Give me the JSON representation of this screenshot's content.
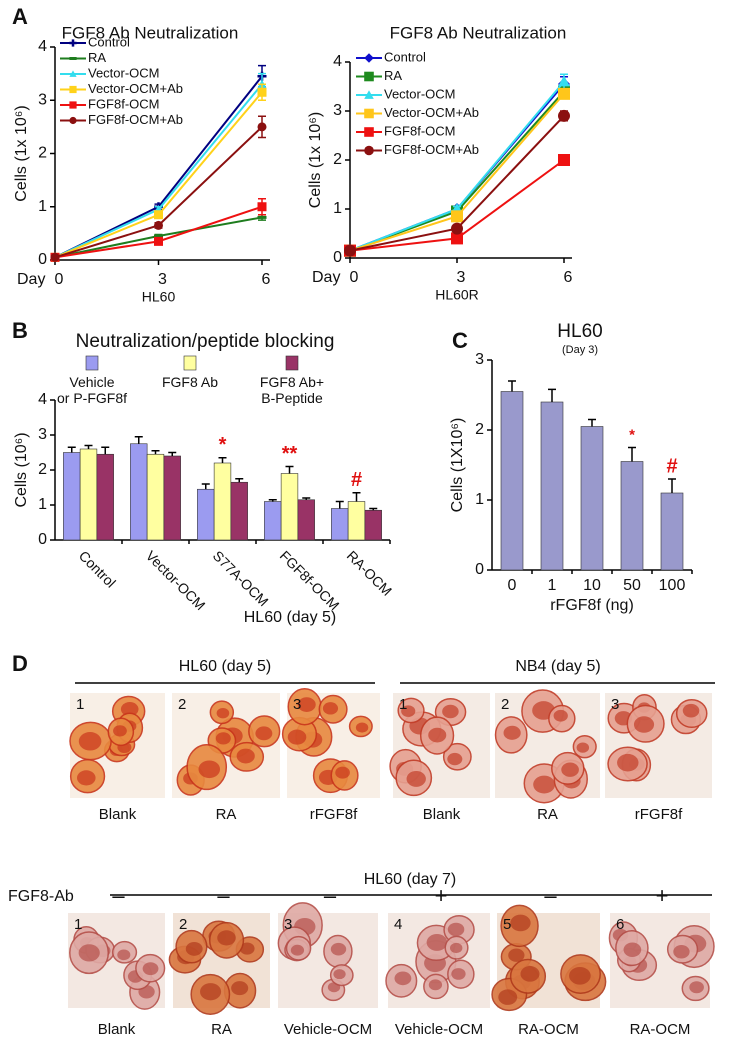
{
  "panel_labels": {
    "a": "A",
    "b": "B",
    "c": "C",
    "d": "D"
  },
  "chart_data": [
    {
      "type": "line",
      "title": "FGF8 Ab Neutralization",
      "xlabel": "HL60",
      "x_prefix": "Day",
      "ylabel": "Cells (1x 10⁶)",
      "x": [
        0,
        3,
        6
      ],
      "xlim": [
        0,
        6
      ],
      "xticks": [
        0,
        3,
        6
      ],
      "ylim": [
        0,
        4
      ],
      "yticks": [
        0,
        1,
        2,
        3,
        4
      ],
      "series": [
        {
          "name": "Control",
          "color": "#000080",
          "marker": "plus",
          "values": [
            0.05,
            1.0,
            3.45
          ],
          "errors": [
            0.02,
            0.05,
            0.2
          ]
        },
        {
          "name": "RA",
          "color": "#1e7d1e",
          "marker": "minus",
          "values": [
            0.05,
            0.45,
            0.8
          ],
          "errors": [
            0.02,
            0.03,
            0.05
          ]
        },
        {
          "name": "Vector-OCM",
          "color": "#33ddee",
          "marker": "triangle",
          "values": [
            0.05,
            0.95,
            3.3
          ],
          "errors": [
            0.02,
            0.05,
            0.2
          ]
        },
        {
          "name": "Vector-OCM+Ab",
          "color": "#ffd21a",
          "marker": "square",
          "values": [
            0.05,
            0.85,
            3.15
          ],
          "errors": [
            0.02,
            0.05,
            0.15
          ]
        },
        {
          "name": "FGF8f-OCM",
          "color": "#ee1111",
          "marker": "square",
          "values": [
            0.05,
            0.35,
            1.0
          ],
          "errors": [
            0.02,
            0.05,
            0.15
          ]
        },
        {
          "name": "FGF8f-OCM+Ab",
          "color": "#8b1010",
          "marker": "circle",
          "values": [
            0.05,
            0.65,
            2.5
          ],
          "errors": [
            0.02,
            0.05,
            0.2
          ]
        }
      ]
    },
    {
      "type": "line",
      "title": "FGF8 Ab Neutralization",
      "xlabel": "HL60R",
      "x_prefix": "Day",
      "ylabel": "Cells (1x 10⁶)",
      "x": [
        0,
        3,
        6
      ],
      "xlim": [
        0,
        6
      ],
      "xticks": [
        0,
        3,
        6
      ],
      "ylim": [
        0,
        4
      ],
      "yticks": [
        0,
        1,
        2,
        3,
        4
      ],
      "series": [
        {
          "name": "Control",
          "color": "#1010cc",
          "marker": "diamond",
          "values": [
            0.15,
            1.0,
            3.55
          ],
          "errors": [
            0.02,
            0.05,
            0.15
          ]
        },
        {
          "name": "RA",
          "color": "#1e8a1e",
          "marker": "square",
          "values": [
            0.15,
            0.95,
            3.4
          ],
          "errors": [
            0.02,
            0.05,
            0.1
          ]
        },
        {
          "name": "Vector-OCM",
          "color": "#33ddee",
          "marker": "triangle",
          "values": [
            0.15,
            1.0,
            3.6
          ],
          "errors": [
            0.02,
            0.05,
            0.15
          ]
        },
        {
          "name": "Vector-OCM+Ab",
          "color": "#ffc61a",
          "marker": "square",
          "values": [
            0.15,
            0.85,
            3.35
          ],
          "errors": [
            0.02,
            0.05,
            0.1
          ]
        },
        {
          "name": "FGF8f-OCM",
          "color": "#ee1111",
          "marker": "square",
          "values": [
            0.15,
            0.4,
            2.0
          ],
          "errors": [
            0.02,
            0.03,
            0.05
          ]
        },
        {
          "name": "FGF8f-OCM+Ab",
          "color": "#8b1010",
          "marker": "circle",
          "values": [
            0.15,
            0.6,
            2.9
          ],
          "errors": [
            0.02,
            0.05,
            0.1
          ]
        }
      ]
    },
    {
      "type": "bar",
      "title": "Neutralization/peptide blocking",
      "xlabel": "HL60 (day 5)",
      "ylabel": "Cells (10⁶)",
      "categories": [
        "Control",
        "Vector-OCM",
        "S77A-OCM",
        "FGF8f-OCM",
        "RA-OCM"
      ],
      "ylim": [
        0,
        4
      ],
      "yticks": [
        0,
        1,
        2,
        3,
        4
      ],
      "series": [
        {
          "name": "Vehicle\nor P-FGF8f",
          "color": "#9b9bf0",
          "values": [
            2.5,
            2.75,
            1.45,
            1.1,
            0.9
          ],
          "errors": [
            0.15,
            0.2,
            0.15,
            0.05,
            0.2
          ]
        },
        {
          "name": "FGF8 Ab",
          "color": "#ffffa0",
          "values": [
            2.6,
            2.45,
            2.2,
            1.9,
            1.1
          ],
          "errors": [
            0.1,
            0.1,
            0.15,
            0.2,
            0.25
          ]
        },
        {
          "name": "FGF8 Ab+\nB-Peptide",
          "color": "#993366",
          "values": [
            2.45,
            2.4,
            1.65,
            1.15,
            0.85
          ],
          "errors": [
            0.2,
            0.1,
            0.1,
            0.05,
            0.05
          ]
        }
      ],
      "annotation_color": "#e01010",
      "annotations": [
        {
          "text": "*",
          "category": "S77A-OCM",
          "series": "FGF8 Ab"
        },
        {
          "text": "**",
          "category": "FGF8f-OCM",
          "series": "FGF8 Ab"
        },
        {
          "text": "#",
          "category": "RA-OCM",
          "series": "FGF8 Ab"
        }
      ]
    },
    {
      "type": "bar",
      "title": "HL60",
      "subtitle": "(Day 3)",
      "xlabel": "rFGF8f (ng)",
      "ylabel": "Cells (1X10⁶)",
      "categories": [
        "0",
        "1",
        "10",
        "50",
        "100"
      ],
      "values": [
        2.55,
        2.4,
        2.05,
        1.55,
        1.1
      ],
      "errors": [
        0.15,
        0.18,
        0.1,
        0.2,
        0.2
      ],
      "color": "#9999cc",
      "ylim": [
        0,
        3
      ],
      "yticks": [
        0,
        1,
        2,
        3
      ],
      "annotation_color": "#e01010",
      "annotations": [
        {
          "text": "*",
          "category": "50"
        },
        {
          "text": "#",
          "category": "100"
        }
      ]
    }
  ],
  "panel_d": {
    "groups": [
      {
        "title": "HL60 (day 5)",
        "images": [
          {
            "number": "1",
            "caption": "Blank"
          },
          {
            "number": "2",
            "caption": "RA"
          },
          {
            "number": "3",
            "caption": "rFGF8f"
          }
        ]
      },
      {
        "title": "NB4 (day 5)",
        "images": [
          {
            "number": "1",
            "caption": "Blank"
          },
          {
            "number": "2",
            "caption": "RA"
          },
          {
            "number": "3",
            "caption": "rFGF8f"
          }
        ]
      },
      {
        "title": "HL60 (day 7)",
        "row_label": "FGF8-Ab",
        "images": [
          {
            "number": "1",
            "sign": "–",
            "caption": "Blank"
          },
          {
            "number": "2",
            "sign": "–",
            "caption": "RA"
          },
          {
            "number": "3",
            "sign": "–",
            "caption": "Vehicle-OCM"
          },
          {
            "number": "4",
            "sign": "+",
            "caption": "Vehicle-OCM"
          },
          {
            "number": "5",
            "sign": "–",
            "caption": "RA-OCM"
          },
          {
            "number": "6",
            "sign": "+",
            "caption": "RA-OCM"
          }
        ]
      }
    ]
  }
}
